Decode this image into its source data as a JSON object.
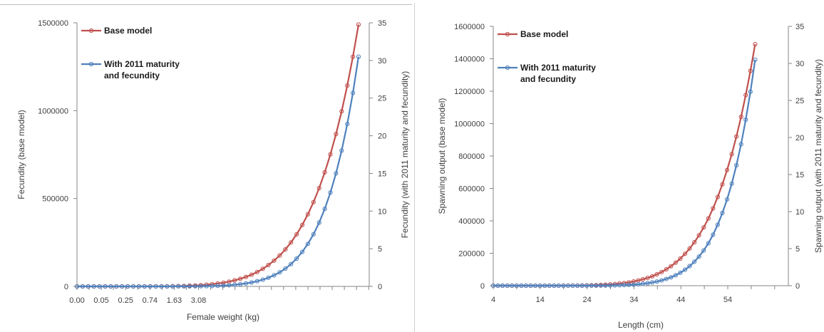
{
  "colors": {
    "base": "#c0504d",
    "alt": "#4f81bd"
  },
  "chart_data": [
    {
      "type": "line",
      "xlabel": "Female weight (kg)",
      "ylabel_left": "Fecundity (base model)",
      "ylabel_right": "Fecundity (with 2011 maturity and fecundity)",
      "x_tick_labels": [
        "0.00",
        "0.05",
        "0.25",
        "0.74",
        "1.63",
        "3.08"
      ],
      "ylim_left": [
        0,
        1500000
      ],
      "yticks_left": [
        0,
        500000,
        1000000,
        1500000
      ],
      "ylim_right": [
        0,
        35
      ],
      "yticks_right": [
        0,
        5,
        10,
        15,
        20,
        25,
        30,
        35
      ],
      "grid": false,
      "legend": "top-left",
      "series": [
        {
          "name": "Base model",
          "axis": "left",
          "color": "#c0504d",
          "shape": "power",
          "n_points": 51,
          "x_start": 0,
          "x_end": 50,
          "y_start": 0,
          "y_end": 1490000,
          "exponent": 6.5
        },
        {
          "name": "With 2011 maturity\nand fecundity",
          "axis": "right",
          "color": "#4f81bd",
          "shape": "power",
          "n_points": 51,
          "x_start": 0,
          "x_end": 50,
          "y_start": 0,
          "y_end": 30.5,
          "exponent": 8.5
        }
      ]
    },
    {
      "type": "line",
      "xlabel": "Length (cm)",
      "ylabel_left": "Spawning output (base model)",
      "ylabel_right": "Spawning output (with 2011 maturity and fecundity)",
      "x_tick_labels": [
        "4",
        "14",
        "24",
        "34",
        "44",
        "54"
      ],
      "ylim_left": [
        0,
        1600000
      ],
      "yticks_left": [
        0,
        200000,
        400000,
        600000,
        800000,
        1000000,
        1200000,
        1400000,
        1600000
      ],
      "ylim_right": [
        0,
        35
      ],
      "yticks_right": [
        0,
        5,
        10,
        15,
        20,
        25,
        30,
        35
      ],
      "grid": false,
      "legend": "top-left",
      "series": [
        {
          "name": "Base model",
          "axis": "left",
          "color": "#c0504d",
          "shape": "power",
          "n_points": 57,
          "x_start": 4,
          "x_end": 60,
          "y_start": 0,
          "y_end": 1490000,
          "exponent": 6.5
        },
        {
          "name": "With 2011 maturity\nand fecundity",
          "axis": "right",
          "color": "#4f81bd",
          "shape": "power",
          "n_points": 57,
          "x_start": 4,
          "x_end": 60,
          "y_start": 0,
          "y_end": 30.5,
          "exponent": 8.5
        }
      ]
    }
  ]
}
